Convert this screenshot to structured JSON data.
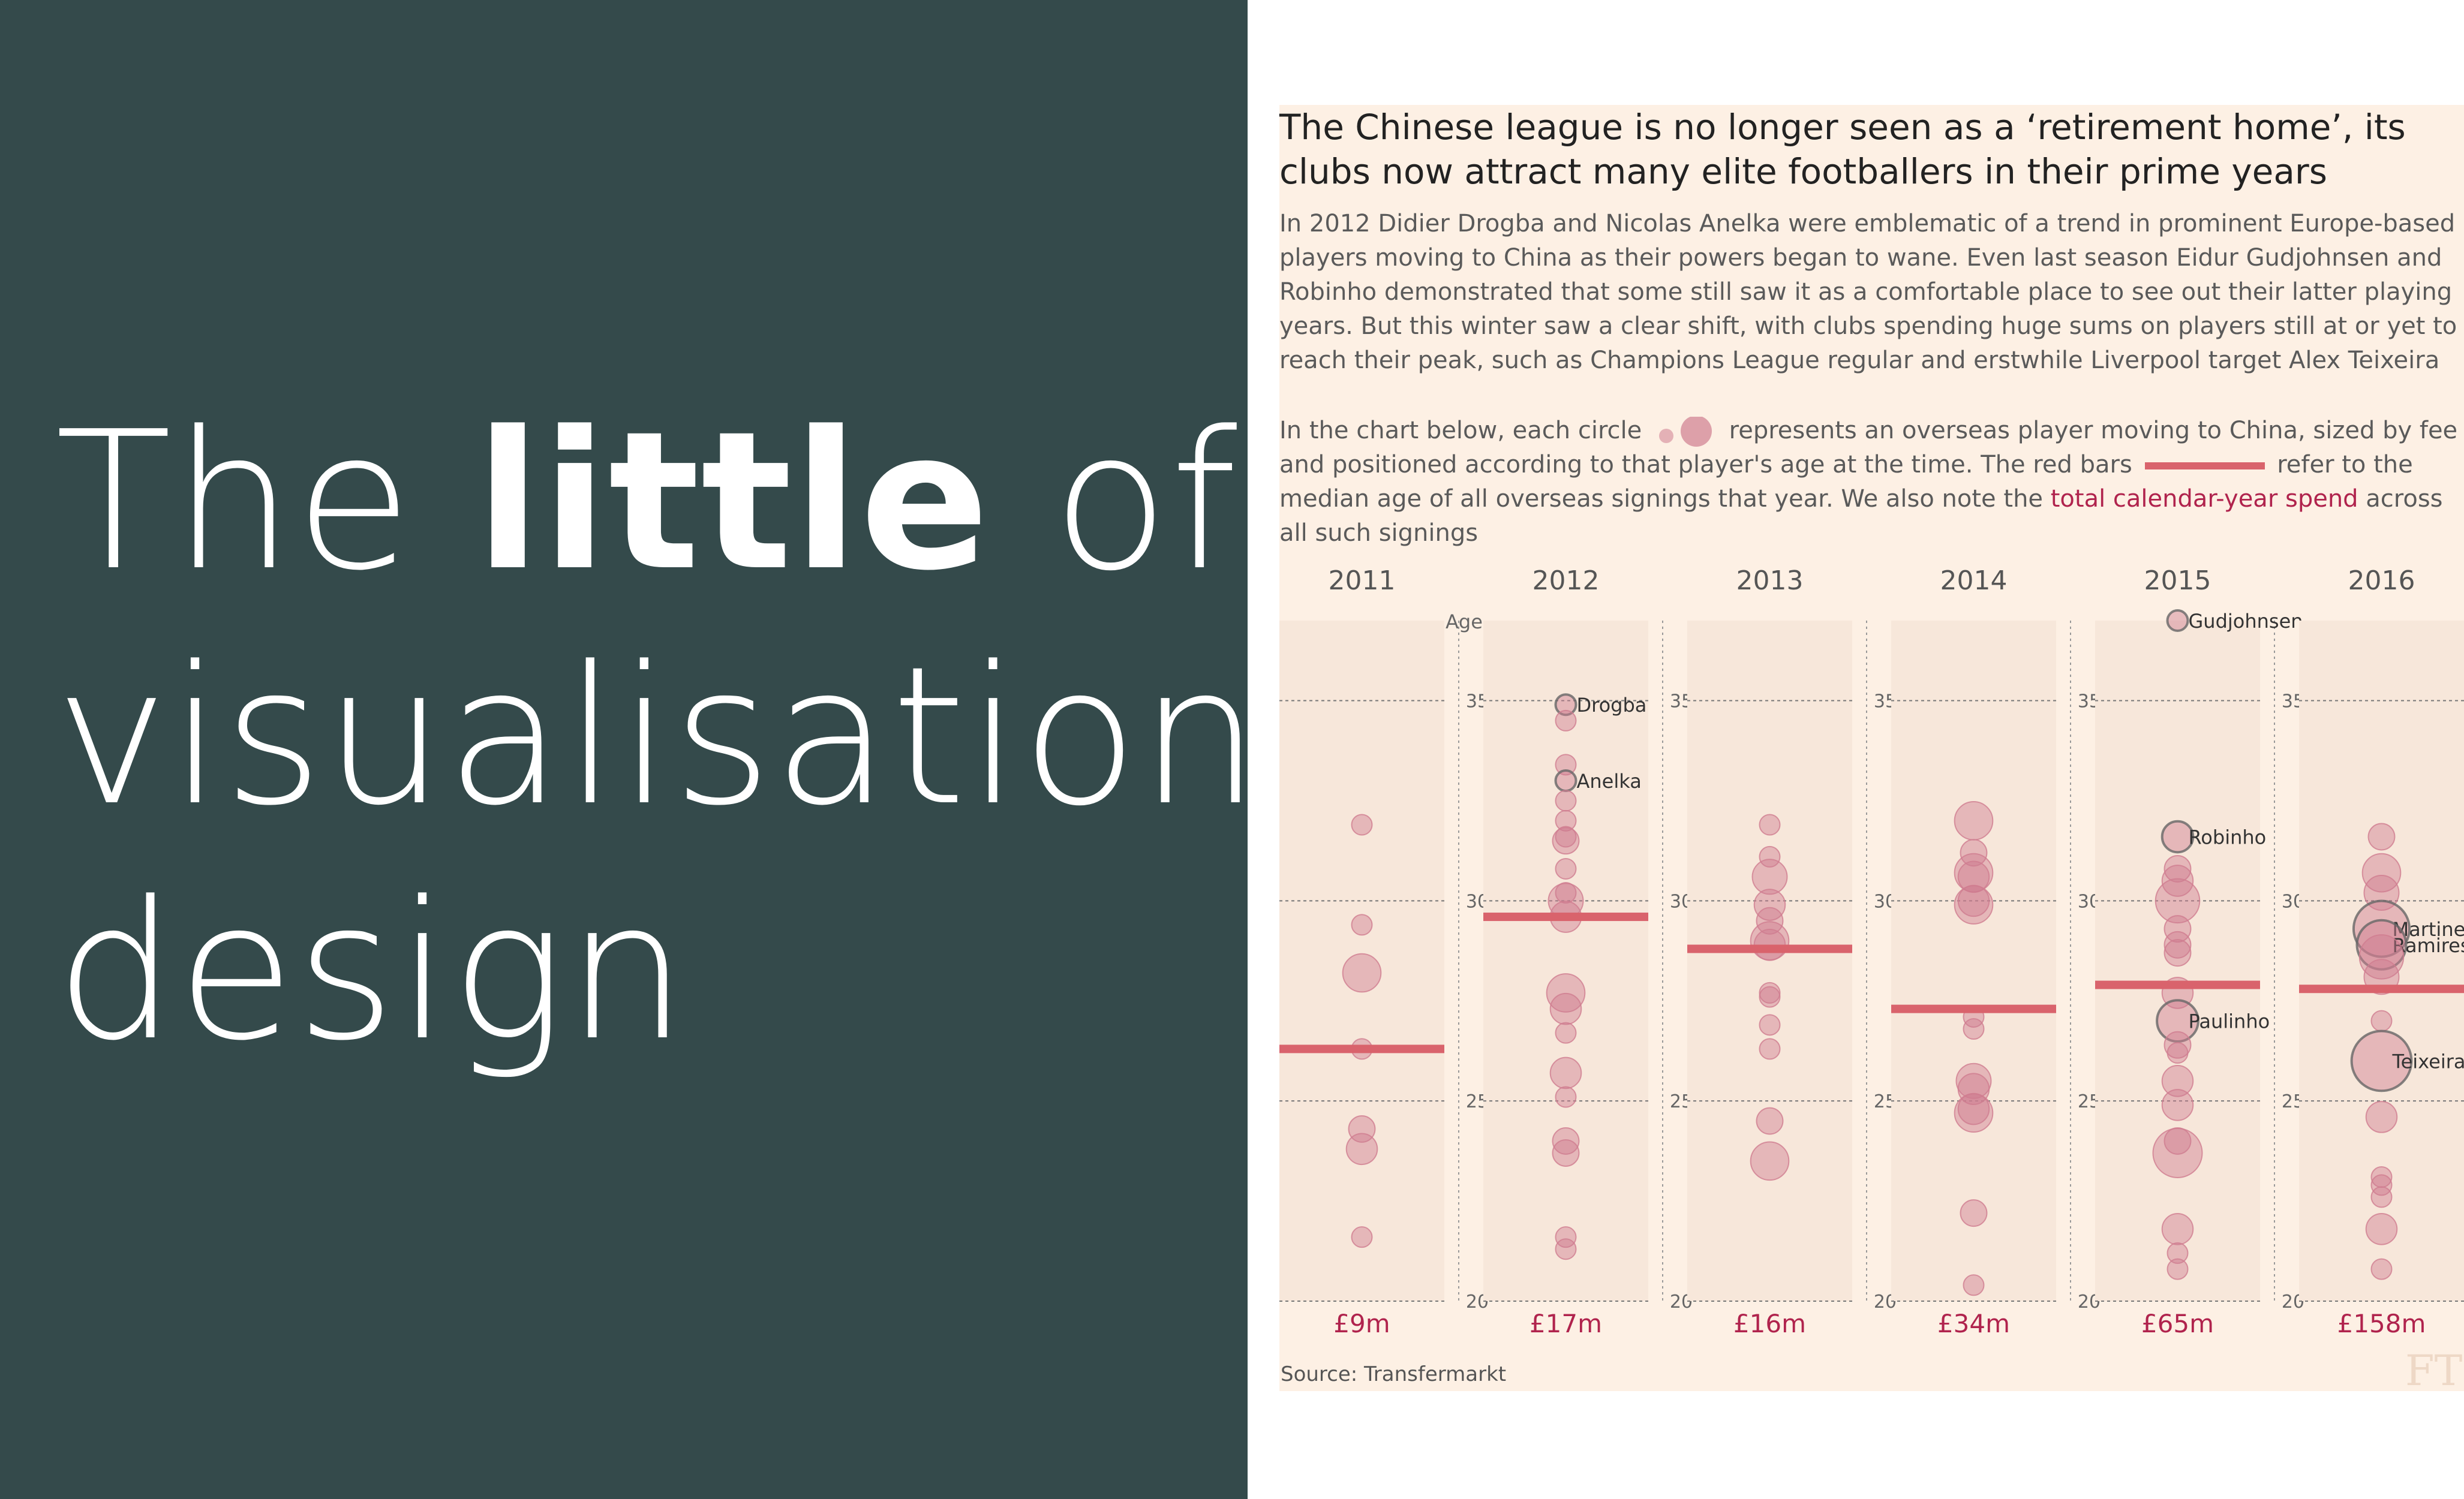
{
  "slide": {
    "headline_part1": "The ",
    "headline_bold": "little",
    "headline_part2": " of",
    "headline_line2": "visualisation",
    "headline_line3": "design"
  },
  "figure": {
    "title": "The Chinese league is no longer seen as a ‘retirement home’, its clubs now attract many elite footballers in their prime years",
    "intro": "In 2012 Didier Drogba and Nicolas Anelka were emblematic of a trend in prominent Europe-based players moving to China as their powers began to wane. Even last season Eidur Gudjohnsen and Robinho demonstrated that some still saw it as a comfortable place to see out their latter playing years. But this winter saw a clear shift, with clubs spending huge sums on players still at or yet to reach their peak, such as Champions League regular and erstwhile Liverpool target Alex Teixeira",
    "legend_a": "In the chart below, each circle ",
    "legend_b": " represents an overseas player moving to China, sized by fee and positioned according to that player's age at the time. The red bars ",
    "legend_c": " refer to the median age of all overseas signings that year. We also note the ",
    "legend_link": "total calendar-year spend",
    "legend_d": " across all such signings",
    "source": "Source: Transfermarkt",
    "logo": "FT"
  },
  "chart_data": {
    "type": "scatter",
    "title": "",
    "ylabel": "Age",
    "ylim": [
      20,
      37
    ],
    "yticks": [
      20,
      25,
      30,
      35
    ],
    "grid": true,
    "colors": {
      "bubble": "#cf7d90",
      "median_bar": "#d9636c",
      "spend": "#b0234d",
      "panel": "#f7e7da",
      "card": "#fdf0e4"
    },
    "panels": [
      {
        "year": "2011",
        "spend": "£9m",
        "median_age": 26.3,
        "players": [
          {
            "age": 31.9,
            "size": 1
          },
          {
            "age": 29.4,
            "size": 1
          },
          {
            "age": 28.2,
            "size": 5
          },
          {
            "age": 26.3,
            "size": 1
          },
          {
            "age": 24.3,
            "size": 2
          },
          {
            "age": 23.8,
            "size": 3
          },
          {
            "age": 21.6,
            "size": 1
          }
        ]
      },
      {
        "year": "2012",
        "spend": "£17m",
        "median_age": 29.6,
        "players": [
          {
            "age": 34.9,
            "size": 1,
            "label": "Drogba",
            "labeled": true
          },
          {
            "age": 34.5,
            "size": 1
          },
          {
            "age": 33.4,
            "size": 1
          },
          {
            "age": 33.0,
            "size": 1,
            "label": "Anelka",
            "labeled": true
          },
          {
            "age": 32.5,
            "size": 1
          },
          {
            "age": 32.0,
            "size": 1
          },
          {
            "age": 31.6,
            "size": 1
          },
          {
            "age": 31.5,
            "size": 2
          },
          {
            "age": 30.8,
            "size": 1
          },
          {
            "age": 30.2,
            "size": 1
          },
          {
            "age": 30.0,
            "size": 4
          },
          {
            "age": 29.6,
            "size": 3
          },
          {
            "age": 27.7,
            "size": 5
          },
          {
            "age": 27.3,
            "size": 3
          },
          {
            "age": 26.7,
            "size": 1
          },
          {
            "age": 25.7,
            "size": 3
          },
          {
            "age": 25.1,
            "size": 1
          },
          {
            "age": 24.0,
            "size": 2
          },
          {
            "age": 23.7,
            "size": 2
          },
          {
            "age": 21.6,
            "size": 1
          },
          {
            "age": 21.3,
            "size": 1
          }
        ]
      },
      {
        "year": "2013",
        "spend": "£16m",
        "median_age": 28.8,
        "players": [
          {
            "age": 31.9,
            "size": 1
          },
          {
            "age": 31.1,
            "size": 1
          },
          {
            "age": 30.6,
            "size": 4
          },
          {
            "age": 29.9,
            "size": 3
          },
          {
            "age": 29.5,
            "size": 2
          },
          {
            "age": 29.0,
            "size": 5
          },
          {
            "age": 28.9,
            "size": 3
          },
          {
            "age": 27.7,
            "size": 1
          },
          {
            "age": 27.6,
            "size": 1
          },
          {
            "age": 26.9,
            "size": 1
          },
          {
            "age": 26.3,
            "size": 1
          },
          {
            "age": 24.5,
            "size": 2
          },
          {
            "age": 23.5,
            "size": 5
          }
        ]
      },
      {
        "year": "2014",
        "spend": "£34m",
        "median_age": 27.3,
        "players": [
          {
            "age": 32.0,
            "size": 5
          },
          {
            "age": 31.2,
            "size": 2
          },
          {
            "age": 30.7,
            "size": 5
          },
          {
            "age": 30.6,
            "size": 3
          },
          {
            "age": 30.0,
            "size": 3
          },
          {
            "age": 29.9,
            "size": 5
          },
          {
            "age": 27.1,
            "size": 1
          },
          {
            "age": 26.8,
            "size": 1
          },
          {
            "age": 25.5,
            "size": 4
          },
          {
            "age": 25.3,
            "size": 3
          },
          {
            "age": 24.8,
            "size": 3
          },
          {
            "age": 24.7,
            "size": 5
          },
          {
            "age": 22.2,
            "size": 2
          },
          {
            "age": 20.4,
            "size": 1
          }
        ]
      },
      {
        "year": "2015",
        "spend": "£65m",
        "median_age": 27.9,
        "players": [
          {
            "age": 37.0,
            "size": 1,
            "label": "Gudjohnsen",
            "labeled": true
          },
          {
            "age": 31.6,
            "size": 3,
            "label": "Robinho",
            "labeled": true
          },
          {
            "age": 30.8,
            "size": 2
          },
          {
            "age": 30.5,
            "size": 3
          },
          {
            "age": 30.0,
            "size": 7
          },
          {
            "age": 29.3,
            "size": 2
          },
          {
            "age": 28.9,
            "size": 2
          },
          {
            "age": 28.7,
            "size": 2
          },
          {
            "age": 27.7,
            "size": 3
          },
          {
            "age": 27.0,
            "size": 6,
            "label": "Paulinho",
            "labeled": true
          },
          {
            "age": 26.4,
            "size": 2
          },
          {
            "age": 26.2,
            "size": 1
          },
          {
            "age": 25.5,
            "size": 3
          },
          {
            "age": 24.9,
            "size": 3
          },
          {
            "age": 24.0,
            "size": 2
          },
          {
            "age": 23.7,
            "size": 9
          },
          {
            "age": 21.8,
            "size": 3
          },
          {
            "age": 21.2,
            "size": 1
          },
          {
            "age": 20.8,
            "size": 1
          }
        ]
      },
      {
        "year": "2016",
        "spend": "£158m",
        "median_age": 27.8,
        "players": [
          {
            "age": 31.6,
            "size": 2
          },
          {
            "age": 30.7,
            "size": 5
          },
          {
            "age": 30.2,
            "size": 4
          },
          {
            "age": 29.3,
            "size": 12,
            "label": "Martinez",
            "labeled": true
          },
          {
            "age": 28.9,
            "size": 9,
            "label": "Ramires",
            "labeled": true
          },
          {
            "age": 28.6,
            "size": 7
          },
          {
            "age": 28.1,
            "size": 4
          },
          {
            "age": 27.0,
            "size": 1
          },
          {
            "age": 26.0,
            "size": 14,
            "label": "Teixeira",
            "labeled": true
          },
          {
            "age": 24.6,
            "size": 3
          },
          {
            "age": 23.1,
            "size": 1
          },
          {
            "age": 22.9,
            "size": 1
          },
          {
            "age": 22.6,
            "size": 1
          },
          {
            "age": 21.8,
            "size": 3
          },
          {
            "age": 20.8,
            "size": 1
          }
        ]
      }
    ]
  }
}
